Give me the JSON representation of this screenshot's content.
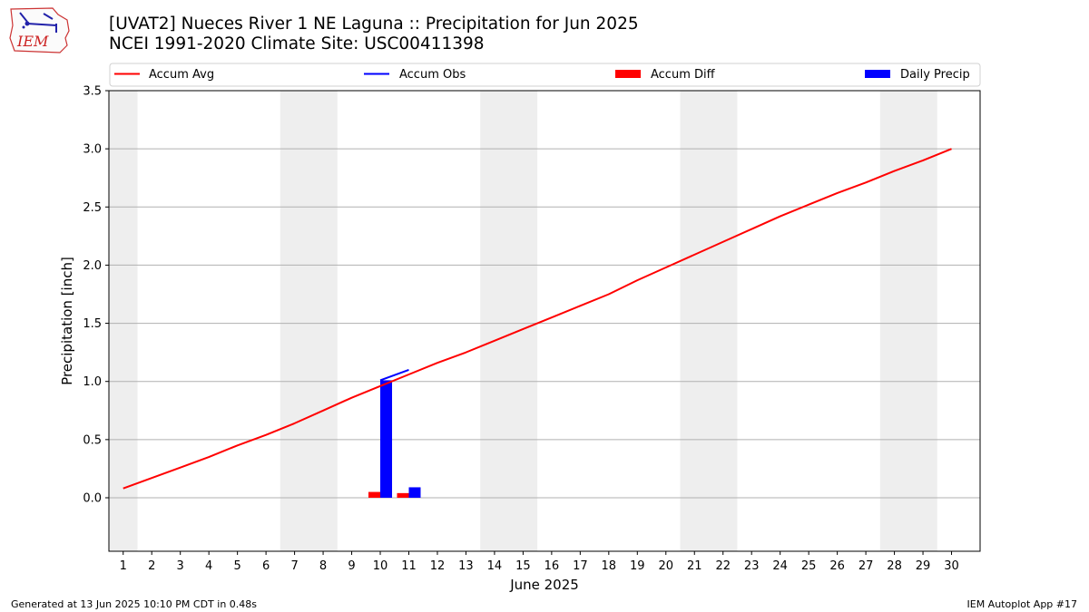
{
  "header": {
    "title_line1": "[UVAT2] Nueces River 1 NE Laguna :: Precipitation for Jun 2025",
    "title_line2": "NCEI 1991-2020 Climate Site: USC00411398",
    "logo_text": "IEM"
  },
  "footer": {
    "generated": "Generated at 13 Jun 2025 10:10 PM CDT in 0.48s",
    "app": "IEM Autoplot App #17"
  },
  "colors": {
    "accum_avg": "#ff0000",
    "accum_obs": "#0000ff",
    "accum_diff": "#ff0000",
    "daily_precip": "#0000ff",
    "weekend_shade": "#eeeeee",
    "grid": "#b0b0b0"
  },
  "chart_data": {
    "type": "bar",
    "title": "[UVAT2] Nueces River 1 NE Laguna :: Precipitation for Jun 2025",
    "subtitle": "NCEI 1991-2020 Climate Site: USC00411398",
    "xlabel": "June 2025",
    "ylabel": "Precipitation [inch]",
    "xlim": [
      0.5,
      31
    ],
    "ylim": [
      -0.46,
      3.5
    ],
    "yticks": [
      0.0,
      0.5,
      1.0,
      1.5,
      2.0,
      2.5,
      3.0,
      3.5
    ],
    "ytick_labels": [
      "0.0",
      "0.5",
      "1.0",
      "1.5",
      "2.0",
      "2.5",
      "3.0",
      "3.5"
    ],
    "x": [
      1,
      2,
      3,
      4,
      5,
      6,
      7,
      8,
      9,
      10,
      11,
      12,
      13,
      14,
      15,
      16,
      17,
      18,
      19,
      20,
      21,
      22,
      23,
      24,
      25,
      26,
      27,
      28,
      29,
      30
    ],
    "xtick_labels": [
      "1",
      "2",
      "3",
      "4",
      "5",
      "6",
      "7",
      "8",
      "9",
      "10",
      "11",
      "12",
      "13",
      "14",
      "15",
      "16",
      "17",
      "18",
      "19",
      "20",
      "21",
      "22",
      "23",
      "24",
      "25",
      "26",
      "27",
      "28",
      "29",
      "30"
    ],
    "grid": "horizontal",
    "legend_position": "top",
    "weekend_shading": [
      [
        0.5,
        1.5
      ],
      [
        6.5,
        8.5
      ],
      [
        13.5,
        15.5
      ],
      [
        20.5,
        22.5
      ],
      [
        27.5,
        29.5
      ]
    ],
    "legend": [
      "Accum Avg",
      "Accum Obs",
      "Accum Diff",
      "Daily Precip"
    ],
    "series": [
      {
        "name": "Accum Avg",
        "type": "line",
        "x": [
          1,
          2,
          3,
          4,
          5,
          6,
          7,
          8,
          9,
          10,
          11,
          12,
          13,
          14,
          15,
          16,
          17,
          18,
          19,
          20,
          21,
          22,
          23,
          24,
          25,
          26,
          27,
          28,
          29,
          30
        ],
        "values": [
          0.08,
          0.17,
          0.26,
          0.35,
          0.45,
          0.54,
          0.64,
          0.75,
          0.86,
          0.96,
          1.06,
          1.16,
          1.25,
          1.35,
          1.45,
          1.55,
          1.65,
          1.75,
          1.87,
          1.98,
          2.09,
          2.2,
          2.31,
          2.42,
          2.52,
          2.62,
          2.71,
          2.81,
          2.9,
          3.0
        ]
      },
      {
        "name": "Accum Obs",
        "type": "line",
        "x": [
          10,
          11
        ],
        "values": [
          1.01,
          1.1
        ]
      },
      {
        "name": "Accum Diff",
        "type": "bar",
        "x": [
          10,
          11
        ],
        "values": [
          0.05,
          0.04
        ]
      },
      {
        "name": "Daily Precip",
        "type": "bar",
        "x": [
          10,
          11
        ],
        "values": [
          1.01,
          0.09
        ]
      }
    ]
  }
}
